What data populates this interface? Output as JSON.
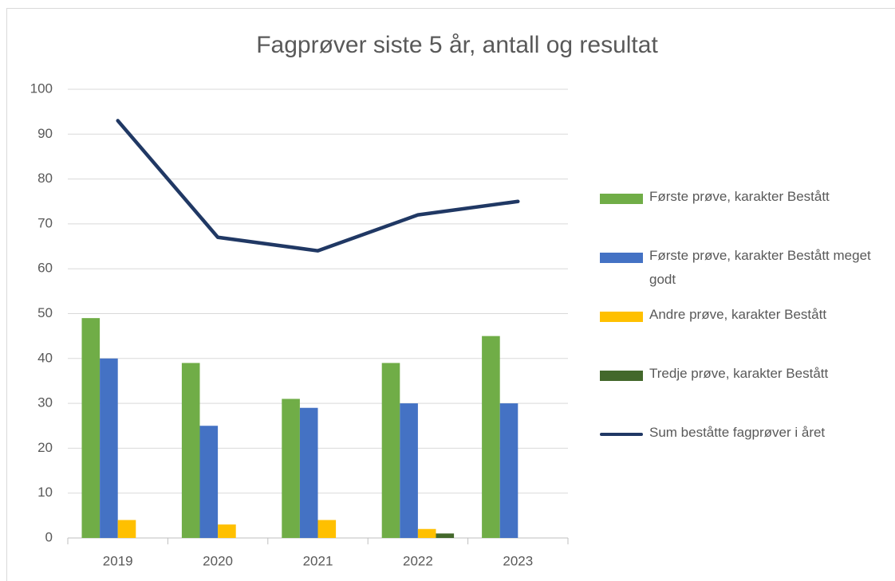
{
  "chart_data": {
    "type": "bar",
    "title": "Fagprøver siste 5 år, antall og resultat",
    "categories": [
      "2019",
      "2020",
      "2021",
      "2022",
      "2023"
    ],
    "series": [
      {
        "name": "Første prøve, karakter Bestått",
        "color": "#70ad47",
        "values": [
          49,
          39,
          31,
          39,
          45
        ]
      },
      {
        "name": "Første prøve, karakter Bestått meget godt",
        "color": "#4472c4",
        "values": [
          40,
          25,
          29,
          30,
          30
        ]
      },
      {
        "name": "Andre prøve, karakter Bestått",
        "color": "#ffc000",
        "values": [
          4,
          3,
          4,
          2,
          0
        ]
      },
      {
        "name": "Tredje prøve, karakter Bestått",
        "color": "#43682b",
        "values": [
          0,
          0,
          0,
          1,
          0
        ]
      },
      {
        "name": "Sum beståtte fagprøver i året",
        "color": "#203864",
        "type": "line",
        "values": [
          93,
          67,
          64,
          72,
          75
        ]
      }
    ],
    "ylim": [
      0,
      100
    ],
    "yticks": [
      0,
      10,
      20,
      30,
      40,
      50,
      60,
      70,
      80,
      90,
      100
    ],
    "grid": true,
    "legend": "right"
  }
}
